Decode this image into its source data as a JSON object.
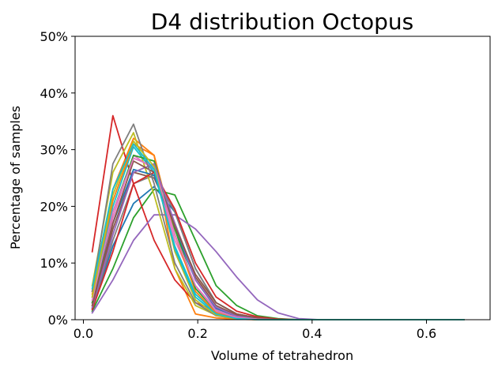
{
  "chart_data": {
    "type": "line",
    "title": "D4 distribution Octopus",
    "xlabel": "Volume of tetrahedron",
    "ylabel": "Percentage of samples",
    "xlim": [
      -0.0145,
      0.7113
    ],
    "ylim": [
      0,
      50
    ],
    "xticks": [
      0.0,
      0.2,
      0.4,
      0.6
    ],
    "xtick_labels": [
      "0.0",
      "0.2",
      "0.4",
      "0.6"
    ],
    "yticks": [
      0,
      10,
      20,
      30,
      40,
      50
    ],
    "ytick_labels": [
      "0%",
      "10%",
      "20%",
      "30%",
      "40%",
      "50%"
    ],
    "grid": false,
    "legend": "none",
    "x": [
      0.0155,
      0.0516,
      0.0877,
      0.1238,
      0.1599,
      0.196,
      0.2321,
      0.2682,
      0.3043,
      0.3404,
      0.3765,
      0.4126,
      0.4487,
      0.4848,
      0.5209,
      0.557,
      0.5931,
      0.6292,
      0.6653
    ],
    "series": [
      {
        "color": "#1f77b4",
        "values": [
          2.0,
          13.0,
          20.5,
          23.5,
          19.0,
          9.0,
          3.0,
          1.0,
          0.3,
          0.1,
          0,
          0,
          0,
          0,
          0,
          0,
          0,
          0,
          0
        ]
      },
      {
        "color": "#ff7f0e",
        "values": [
          5.0,
          23.0,
          32.0,
          29.0,
          9.0,
          1.0,
          0.3,
          0.1,
          0,
          0,
          0,
          0,
          0,
          0,
          0,
          0,
          0,
          0,
          0
        ]
      },
      {
        "color": "#2ca02c",
        "values": [
          1.5,
          9.0,
          18.0,
          23.0,
          22.0,
          14.0,
          6.0,
          2.5,
          0.7,
          0.2,
          0,
          0,
          0,
          0,
          0,
          0,
          0,
          0,
          0
        ]
      },
      {
        "color": "#d62728",
        "values": [
          12.0,
          36.0,
          24.0,
          14.0,
          7.0,
          3.0,
          1.5,
          0.5,
          0.1,
          0,
          0,
          0,
          0,
          0,
          0,
          0,
          0,
          0,
          0
        ]
      },
      {
        "color": "#9467bd",
        "values": [
          1.2,
          7.0,
          14.0,
          18.5,
          18.5,
          16.0,
          12.0,
          7.5,
          3.5,
          1.2,
          0.2,
          0,
          0,
          0,
          0,
          0,
          0,
          0,
          0
        ]
      },
      {
        "color": "#8c564b",
        "values": [
          2.5,
          16.0,
          26.0,
          25.0,
          17.0,
          7.5,
          2.5,
          0.8,
          0.2,
          0,
          0,
          0,
          0,
          0,
          0,
          0,
          0,
          0,
          0
        ]
      },
      {
        "color": "#e377c2",
        "values": [
          3.0,
          18.0,
          29.0,
          26.5,
          14.0,
          6.0,
          1.8,
          0.5,
          0.1,
          0,
          0,
          0,
          0,
          0,
          0,
          0,
          0,
          0,
          0
        ]
      },
      {
        "color": "#7f7f7f",
        "values": [
          2.0,
          14.0,
          24.0,
          25.5,
          19.0,
          9.0,
          3.0,
          1.0,
          0.3,
          0.1,
          0,
          0,
          0,
          0,
          0,
          0,
          0,
          0,
          0
        ]
      },
      {
        "color": "#bcbd22",
        "values": [
          6.0,
          26.0,
          33.0,
          22.0,
          9.0,
          2.5,
          0.8,
          0.2,
          0,
          0,
          0,
          0,
          0,
          0,
          0,
          0,
          0,
          0,
          0
        ]
      },
      {
        "color": "#17becf",
        "values": [
          4.0,
          20.0,
          30.5,
          26.0,
          13.0,
          4.5,
          1.2,
          0.3,
          0.1,
          0,
          0,
          0,
          0,
          0,
          0,
          0,
          0,
          0,
          0
        ]
      },
      {
        "color": "#1f77b4",
        "values": [
          3.0,
          17.0,
          26.5,
          25.5,
          16.0,
          7.0,
          2.0,
          0.6,
          0.1,
          0,
          0,
          0,
          0,
          0,
          0,
          0,
          0,
          0,
          0
        ]
      },
      {
        "color": "#ff7f0e",
        "values": [
          4.5,
          21.0,
          31.0,
          29.0,
          15.0,
          5.0,
          1.2,
          0.3,
          0,
          0,
          0,
          0,
          0,
          0,
          0,
          0,
          0,
          0,
          0
        ]
      },
      {
        "color": "#2ca02c",
        "values": [
          3.0,
          19.0,
          29.0,
          28.0,
          16.0,
          5.5,
          1.5,
          0.4,
          0.1,
          0,
          0,
          0,
          0,
          0,
          0,
          0,
          0,
          0,
          0
        ]
      },
      {
        "color": "#d62728",
        "values": [
          1.8,
          12.0,
          24.0,
          26.0,
          19.5,
          10.0,
          4.0,
          1.5,
          0.5,
          0.1,
          0,
          0,
          0,
          0,
          0,
          0,
          0,
          0,
          0
        ]
      },
      {
        "color": "#9467bd",
        "values": [
          2.2,
          15.0,
          26.0,
          27.5,
          17.0,
          7.0,
          2.2,
          0.6,
          0.1,
          0,
          0,
          0,
          0,
          0,
          0,
          0,
          0,
          0,
          0
        ]
      },
      {
        "color": "#8c564b",
        "values": [
          2.5,
          17.0,
          28.0,
          26.0,
          16.5,
          8.0,
          3.0,
          1.0,
          0.3,
          0,
          0,
          0,
          0,
          0,
          0,
          0,
          0,
          0,
          0
        ]
      },
      {
        "color": "#e377c2",
        "values": [
          3.5,
          19.0,
          28.5,
          27.0,
          15.0,
          6.0,
          1.5,
          0.4,
          0.1,
          0,
          0,
          0,
          0,
          0,
          0,
          0,
          0,
          0,
          0
        ]
      },
      {
        "color": "#7f7f7f",
        "values": [
          5.0,
          27.5,
          34.5,
          24.0,
          10.0,
          3.0,
          0.7,
          0.2,
          0,
          0,
          0,
          0,
          0,
          0,
          0,
          0,
          0,
          0,
          0
        ]
      },
      {
        "color": "#bcbd22",
        "values": [
          4.0,
          22.0,
          31.5,
          27.0,
          12.0,
          3.5,
          0.8,
          0.2,
          0,
          0,
          0,
          0,
          0,
          0,
          0,
          0,
          0,
          0,
          0
        ]
      },
      {
        "color": "#17becf",
        "values": [
          5.5,
          23.0,
          31.0,
          26.5,
          12.5,
          4.0,
          1.0,
          0.2,
          0,
          0,
          0,
          0,
          0,
          0,
          0,
          0,
          0,
          0,
          0
        ]
      }
    ]
  }
}
